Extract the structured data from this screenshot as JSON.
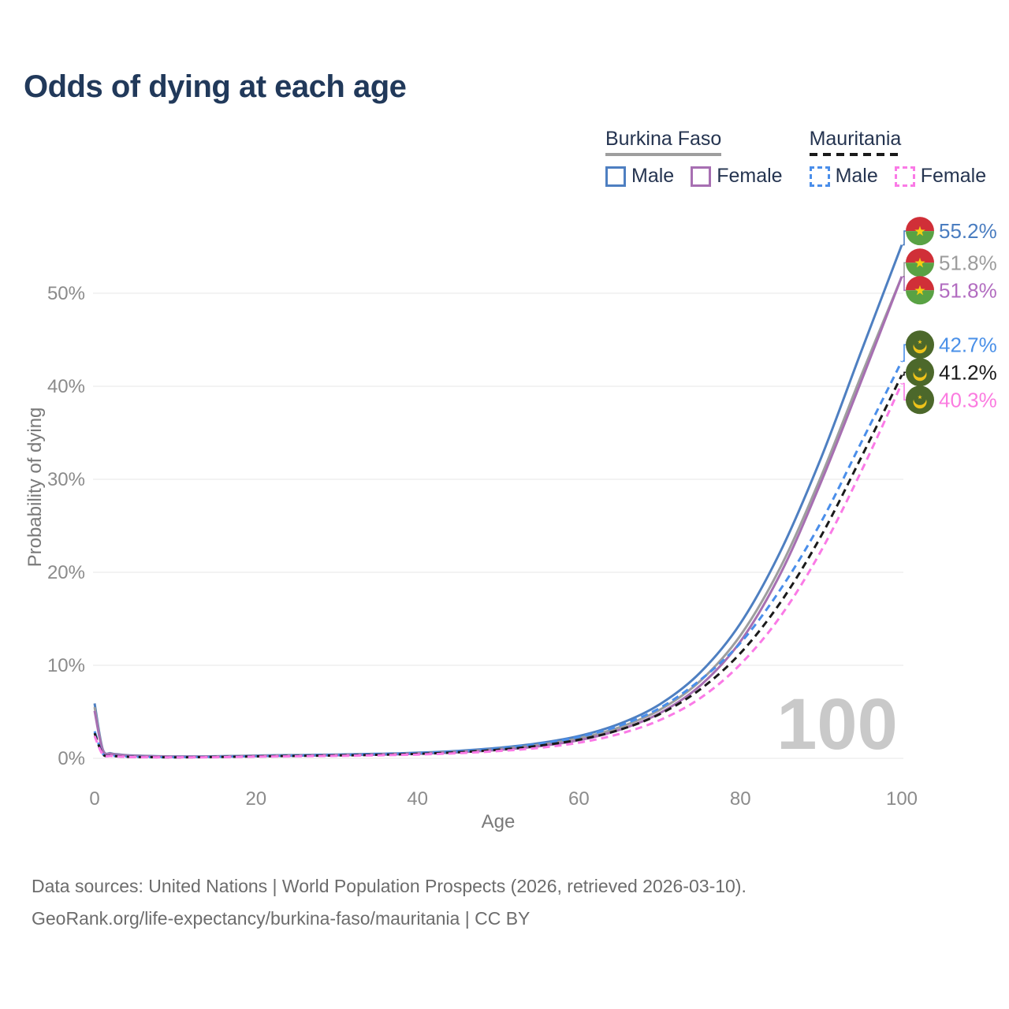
{
  "title": "Odds of dying at each age",
  "legend": {
    "groups": [
      {
        "name": "Burkina Faso",
        "line_style": "solid",
        "swatch_color": "#9e9e9e",
        "items": [
          {
            "label": "Male",
            "color": "#4e7fc1"
          },
          {
            "label": "Female",
            "color": "#a76fb2"
          }
        ]
      },
      {
        "name": "Mauritania",
        "line_style": "dashed",
        "swatch_color": "#1a1a1a",
        "items": [
          {
            "label": "Male",
            "color": "#4a8eea"
          },
          {
            "label": "Female",
            "color": "#fa7ae6"
          }
        ]
      }
    ]
  },
  "chart_data": {
    "type": "line",
    "title": "Odds of dying at each age",
    "xlabel": "Age",
    "ylabel": "Probability of dying",
    "xlim": [
      0,
      100
    ],
    "ylim": [
      0,
      57
    ],
    "x_ticks": [
      0,
      20,
      40,
      60,
      80,
      100
    ],
    "y_ticks": [
      {
        "value": 0,
        "label": "0%"
      },
      {
        "value": 10,
        "label": "10%"
      },
      {
        "value": 20,
        "label": "20%"
      },
      {
        "value": 30,
        "label": "30%"
      },
      {
        "value": 40,
        "label": "40%"
      },
      {
        "value": 50,
        "label": "50%"
      }
    ],
    "grid": "horizontal",
    "legend_position": "top-right",
    "hover_age_watermark": "100",
    "x": [
      0,
      1,
      2,
      3,
      4,
      5,
      10,
      15,
      20,
      25,
      30,
      35,
      40,
      45,
      50,
      55,
      60,
      65,
      70,
      75,
      80,
      85,
      90,
      95,
      100
    ],
    "series": [
      {
        "name": "Burkina Faso Male",
        "country": "Burkina Faso",
        "sex": "Male",
        "flag": "burkina-faso",
        "color": "#4e7fc1",
        "dash": "solid",
        "end_label": "55.2%",
        "end_label_color": "#4a7dc0",
        "values": [
          5.9,
          1.0,
          0.55,
          0.42,
          0.34,
          0.3,
          0.2,
          0.22,
          0.3,
          0.35,
          0.41,
          0.48,
          0.6,
          0.8,
          1.12,
          1.62,
          2.4,
          3.7,
          5.8,
          9.2,
          14.5,
          22.3,
          32.3,
          43.8,
          55.2
        ]
      },
      {
        "name": "Burkina Faso Both",
        "country": "Burkina Faso",
        "sex": "Both",
        "flag": "burkina-faso",
        "color": "#9e9e9e",
        "dash": "solid",
        "end_label": "51.8%",
        "end_label_color": "#9c9c9c",
        "values": [
          5.5,
          0.93,
          0.51,
          0.39,
          0.31,
          0.27,
          0.18,
          0.2,
          0.27,
          0.31,
          0.37,
          0.43,
          0.54,
          0.71,
          1.0,
          1.44,
          2.14,
          3.32,
          5.2,
          8.3,
          13.2,
          20.6,
          30.3,
          41.2,
          51.8
        ]
      },
      {
        "name": "Burkina Faso Female",
        "country": "Burkina Faso",
        "sex": "Female",
        "flag": "burkina-faso",
        "color": "#a76fb2",
        "dash": "solid",
        "end_label": "51.8%",
        "end_label_color": "#b26cc0",
        "values": [
          5.1,
          0.86,
          0.47,
          0.36,
          0.29,
          0.25,
          0.17,
          0.18,
          0.24,
          0.28,
          0.33,
          0.39,
          0.49,
          0.64,
          0.9,
          1.3,
          1.95,
          3.05,
          4.85,
          7.8,
          12.55,
          19.9,
          29.7,
          40.6,
          51.8
        ]
      },
      {
        "name": "Mauritania Male",
        "country": "Mauritania",
        "sex": "Male",
        "flag": "mauritania",
        "color": "#4a8eea",
        "dash": "dashed",
        "end_label": "42.7%",
        "end_label_color": "#4a90e8",
        "values": [
          2.9,
          0.5,
          0.3,
          0.23,
          0.19,
          0.16,
          0.12,
          0.16,
          0.24,
          0.3,
          0.36,
          0.44,
          0.55,
          0.74,
          1.05,
          1.55,
          2.3,
          3.5,
          5.4,
          8.4,
          12.4,
          18.2,
          25.4,
          34.0,
          42.7
        ]
      },
      {
        "name": "Mauritania Both",
        "country": "Mauritania",
        "sex": "Both",
        "flag": "mauritania",
        "color": "#1a1a1a",
        "dash": "dashed",
        "end_label": "41.2%",
        "end_label_color": "#1a1a1a",
        "values": [
          2.7,
          0.46,
          0.28,
          0.21,
          0.17,
          0.14,
          0.11,
          0.14,
          0.21,
          0.26,
          0.31,
          0.38,
          0.48,
          0.65,
          0.92,
          1.35,
          2.0,
          3.05,
          4.75,
          7.4,
          11.3,
          16.8,
          23.9,
          32.4,
          41.2
        ]
      },
      {
        "name": "Mauritania Female",
        "country": "Mauritania",
        "sex": "Female",
        "flag": "mauritania",
        "color": "#fa7ae6",
        "dash": "dashed",
        "end_label": "40.3%",
        "end_label_color": "#fb7be0",
        "values": [
          2.4,
          0.42,
          0.25,
          0.19,
          0.15,
          0.13,
          0.1,
          0.12,
          0.18,
          0.22,
          0.26,
          0.32,
          0.41,
          0.55,
          0.78,
          1.12,
          1.68,
          2.62,
          4.1,
          6.45,
          10.1,
          15.3,
          22.3,
          30.9,
          40.3
        ]
      }
    ],
    "flag_colors": {
      "burkina_faso_red": "#d02f38",
      "burkina_faso_green": "#59a244",
      "burkina_faso_star": "#f5cf13",
      "mauritania_green": "#4c682b",
      "mauritania_gold": "#efc31a"
    },
    "style": {
      "grid_color": "#ececec",
      "tick_color": "#8b8b8b",
      "axis_title_color": "#7a7a7a",
      "watermark_color": "#c9c9c9"
    }
  },
  "footer": {
    "line1": "Data sources: United Nations | World Population Prospects (2026, retrieved 2026-03-10).",
    "line2": "GeoRank.org/life-expectancy/burkina-faso/mauritania | CC BY"
  }
}
